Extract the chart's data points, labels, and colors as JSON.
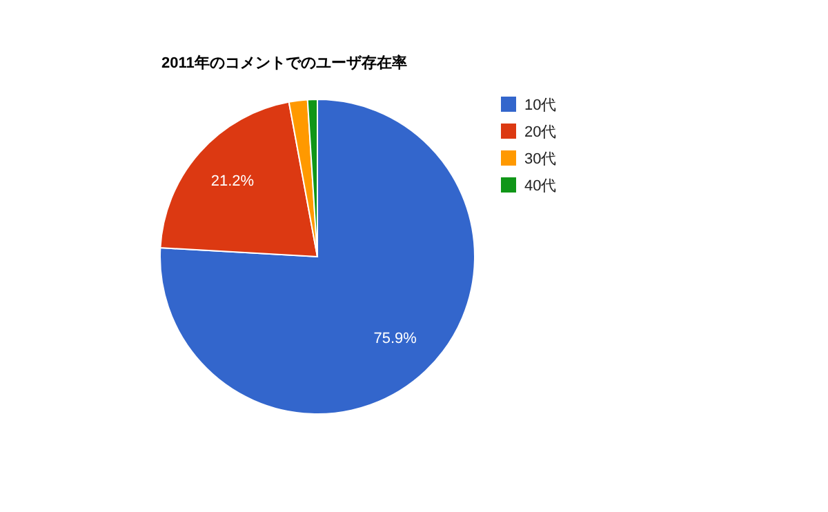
{
  "chart_data": {
    "type": "pie",
    "title": "2011年のコメントでのユーザ存在率",
    "categories": [
      "10代",
      "20代",
      "30代",
      "40代"
    ],
    "values": [
      75.9,
      21.2,
      1.9,
      1.0
    ],
    "colors": [
      "#3366cc",
      "#dc3912",
      "#ff9900",
      "#109618"
    ],
    "value_labels": [
      "75.9%",
      "21.2%",
      null,
      null
    ],
    "legend": "top right"
  }
}
